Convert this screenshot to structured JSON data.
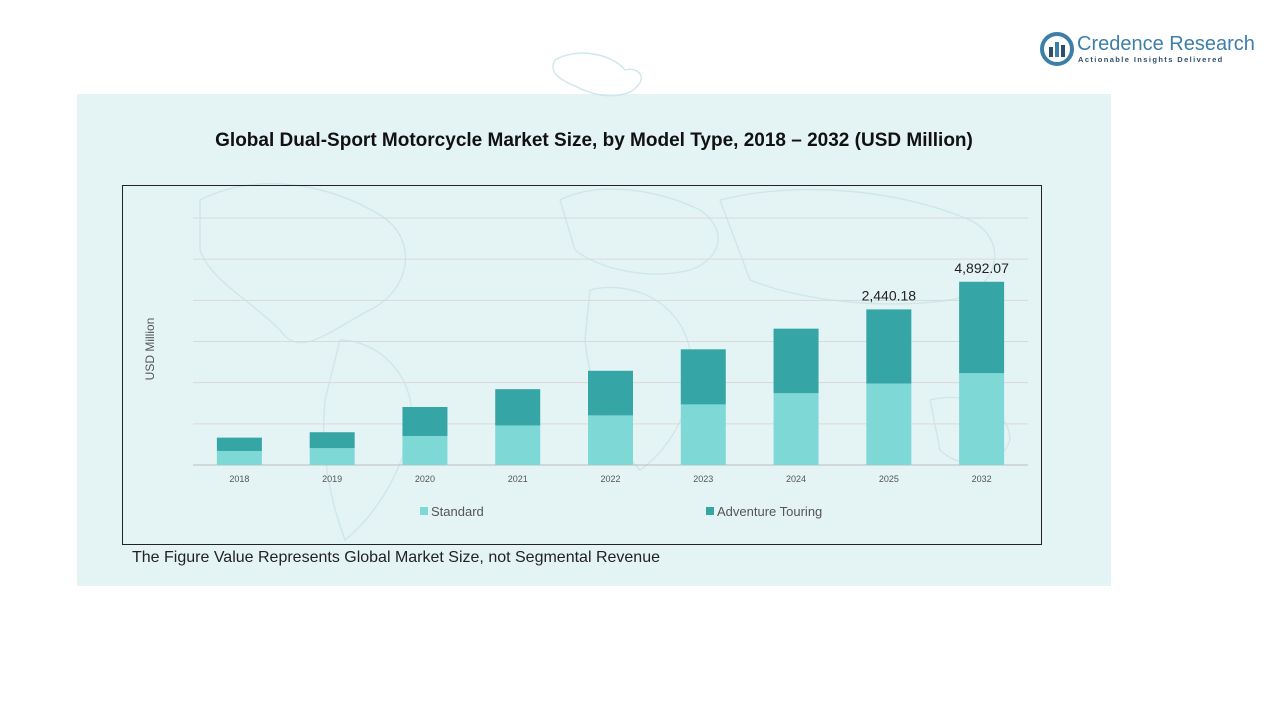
{
  "brand": {
    "name": "Credence Research",
    "tagline": "Actionable Insights Delivered",
    "color": "#3d7fa8"
  },
  "footnote": "The Figure Value Represents Global Market Size, not Segmental Revenue",
  "chart_data": {
    "type": "bar",
    "stacked": true,
    "title": "Global Dual-Sport Motorcycle  Market Size, by Model Type, 2018 – 2032 (USD Million)",
    "xlabel": "",
    "ylabel": "USD Million",
    "ylim": [
      0,
      6000
    ],
    "grid": true,
    "legend_position": "bottom",
    "categories": [
      "2018",
      "2019",
      "2020",
      "2021",
      "2022",
      "2023",
      "2024",
      "2025",
      "2032"
    ],
    "series": [
      {
        "name": "Standard",
        "color": "#7dd8d6",
        "values": [
          341,
          409,
          705,
          961,
          1205,
          1472,
          1745,
          1980,
          2231
        ]
      },
      {
        "name": "Adventure Touring",
        "color": "#35a5a5",
        "values": [
          324,
          387,
          704,
          881,
          1084,
          1338,
          1567,
          1800,
          2220
        ]
      }
    ],
    "data_labels": [
      {
        "category": "2025",
        "text": "2,440.18"
      },
      {
        "category": "2032",
        "text": "4,892.07"
      }
    ]
  }
}
